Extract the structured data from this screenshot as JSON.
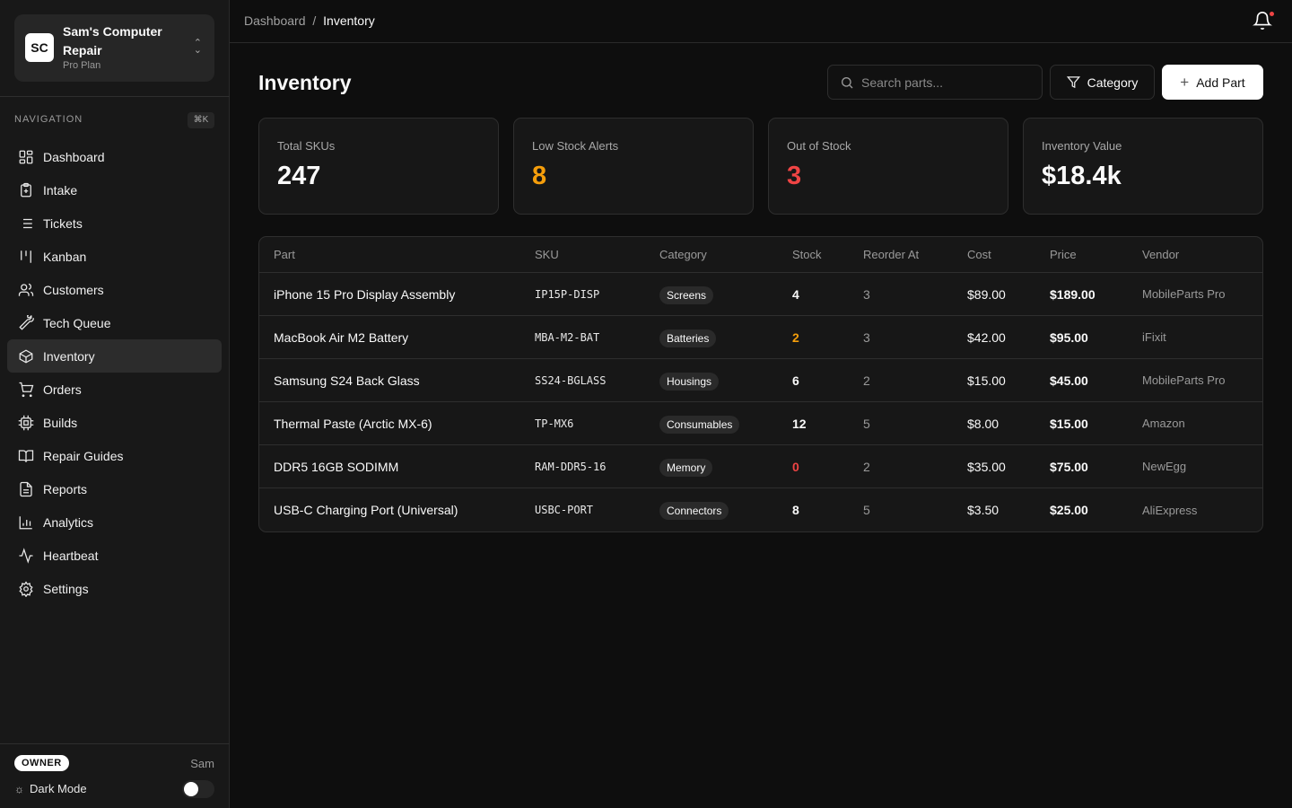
{
  "org": {
    "initials": "SC",
    "name": "Sam's Computer Repair",
    "plan": "Pro Plan"
  },
  "sidebar": {
    "nav_label": "NAVIGATION",
    "shortcut": "⌘K",
    "items": [
      {
        "label": "Dashboard",
        "icon": "layout-grid-icon"
      },
      {
        "label": "Intake",
        "icon": "clipboard-plus-icon"
      },
      {
        "label": "Tickets",
        "icon": "list-icon"
      },
      {
        "label": "Kanban",
        "icon": "kanban-icon"
      },
      {
        "label": "Customers",
        "icon": "users-icon"
      },
      {
        "label": "Tech Queue",
        "icon": "wrench-icon"
      },
      {
        "label": "Inventory",
        "icon": "package-icon",
        "active": true
      },
      {
        "label": "Orders",
        "icon": "shopping-cart-icon"
      },
      {
        "label": "Builds",
        "icon": "cpu-icon"
      },
      {
        "label": "Repair Guides",
        "icon": "book-open-icon"
      },
      {
        "label": "Reports",
        "icon": "file-text-icon"
      },
      {
        "label": "Analytics",
        "icon": "bar-chart-icon"
      },
      {
        "label": "Heartbeat",
        "icon": "activity-icon"
      },
      {
        "label": "Settings",
        "icon": "gear-icon"
      }
    ],
    "role": "OWNER",
    "user": "Sam",
    "dark_mode_label": "Dark Mode",
    "dark_mode_on": false
  },
  "breadcrumb": {
    "parent": "Dashboard",
    "sep": "/",
    "current": "Inventory"
  },
  "page": {
    "title": "Inventory",
    "search_placeholder": "Search parts...",
    "category_label": "Category",
    "add_label": "Add Part"
  },
  "stats": [
    {
      "label": "Total SKUs",
      "value": "247",
      "color": "#fafafa"
    },
    {
      "label": "Low Stock Alerts",
      "value": "8",
      "color": "#f59e0b"
    },
    {
      "label": "Out of Stock",
      "value": "3",
      "color": "#ef4444"
    },
    {
      "label": "Inventory Value",
      "value": "$18.4k",
      "color": "#fafafa"
    }
  ],
  "table": {
    "headers": [
      "Part",
      "SKU",
      "Category",
      "Stock",
      "Reorder At",
      "Cost",
      "Price",
      "Vendor"
    ],
    "rows": [
      {
        "part": "iPhone 15 Pro Display Assembly",
        "sku": "IP15P-DISP",
        "category": "Screens",
        "stock": "4",
        "stock_color": "#fafafa",
        "reorder": "3",
        "cost": "$89.00",
        "price": "$189.00",
        "vendor": "MobileParts Pro"
      },
      {
        "part": "MacBook Air M2 Battery",
        "sku": "MBA-M2-BAT",
        "category": "Batteries",
        "stock": "2",
        "stock_color": "#f59e0b",
        "reorder": "3",
        "cost": "$42.00",
        "price": "$95.00",
        "vendor": "iFixit"
      },
      {
        "part": "Samsung S24 Back Glass",
        "sku": "SS24-BGLASS",
        "category": "Housings",
        "stock": "6",
        "stock_color": "#fafafa",
        "reorder": "2",
        "cost": "$15.00",
        "price": "$45.00",
        "vendor": "MobileParts Pro"
      },
      {
        "part": "Thermal Paste (Arctic MX-6)",
        "sku": "TP-MX6",
        "category": "Consumables",
        "stock": "12",
        "stock_color": "#fafafa",
        "reorder": "5",
        "cost": "$8.00",
        "price": "$15.00",
        "vendor": "Amazon"
      },
      {
        "part": "DDR5 16GB SODIMM",
        "sku": "RAM-DDR5-16",
        "category": "Memory",
        "stock": "0",
        "stock_color": "#ef4444",
        "reorder": "2",
        "cost": "$35.00",
        "price": "$75.00",
        "vendor": "NewEgg"
      },
      {
        "part": "USB-C Charging Port (Universal)",
        "sku": "USBC-PORT",
        "category": "Connectors",
        "stock": "8",
        "stock_color": "#fafafa",
        "reorder": "5",
        "cost": "$3.50",
        "price": "$25.00",
        "vendor": "AliExpress"
      }
    ]
  }
}
